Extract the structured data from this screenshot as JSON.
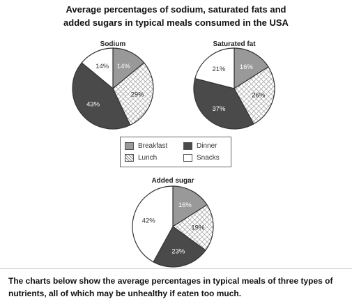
{
  "figure_title": {
    "line1": "Average percentages of sodium, saturated fats and",
    "line2": "added sugars in typical meals consumed in the USA"
  },
  "legend": [
    {
      "label": "Breakfast",
      "pattern": "gray"
    },
    {
      "label": "Dinner",
      "pattern": "dark"
    },
    {
      "label": "Lunch",
      "pattern": "hatch"
    },
    {
      "label": "Snacks",
      "pattern": "white"
    }
  ],
  "colors": {
    "breakfast": "#999999",
    "dinner": "#4a4a4a",
    "lunch_hatch": "#8a8a8a",
    "snacks": "#ffffff",
    "outline": "#333333"
  },
  "chart_data": [
    {
      "type": "pie",
      "title": "Sodium",
      "categories": [
        "Breakfast",
        "Lunch",
        "Dinner",
        "Snacks"
      ],
      "values": [
        14,
        29,
        43,
        14
      ],
      "labels": [
        "14%",
        "29%",
        "43%",
        "14%"
      ]
    },
    {
      "type": "pie",
      "title": "Saturated fat",
      "categories": [
        "Breakfast",
        "Lunch",
        "Dinner",
        "Snacks"
      ],
      "values": [
        16,
        26,
        37,
        21
      ],
      "labels": [
        "16%",
        "26%",
        "37%",
        "21%"
      ]
    },
    {
      "type": "pie",
      "title": "Added sugar",
      "categories": [
        "Breakfast",
        "Lunch",
        "Dinner",
        "Snacks"
      ],
      "values": [
        16,
        19,
        23,
        42
      ],
      "labels": [
        "16%",
        "19%",
        "23%",
        "42%"
      ]
    }
  ],
  "caption": "The charts below show the average percentages in typical meals of three types of nutrients, all of which may be unhealthy if eaten too much."
}
